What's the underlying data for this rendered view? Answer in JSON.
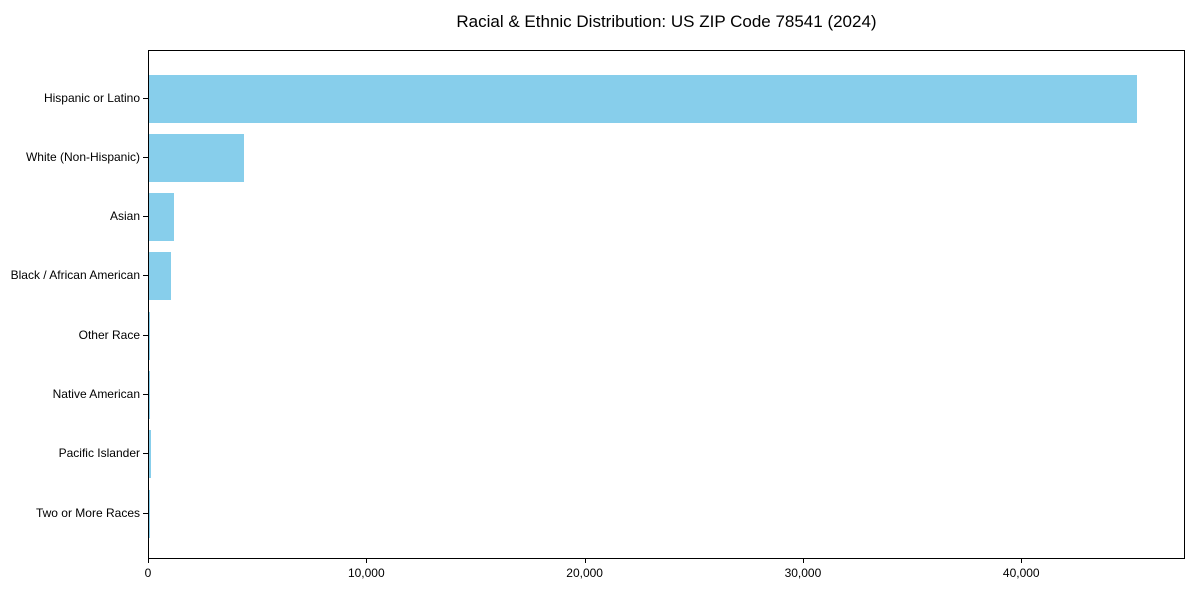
{
  "chart_data": {
    "type": "bar",
    "orientation": "horizontal",
    "title": "Racial & Ethnic Distribution: US ZIP Code 78541 (2024)",
    "categories": [
      "Hispanic or Latino",
      "White (Non-Hispanic)",
      "Asian",
      "Black / African American",
      "Other Race",
      "Native American",
      "Pacific Islander",
      "Two or More Races"
    ],
    "values": [
      45240,
      4350,
      1130,
      1020,
      35,
      25,
      80,
      60
    ],
    "xlabel": "",
    "ylabel": "",
    "xlim": [
      0,
      47500
    ],
    "x_ticks": [
      0,
      10000,
      20000,
      30000,
      40000
    ],
    "x_tick_labels": [
      "0",
      "10,000",
      "20,000",
      "30,000",
      "40,000"
    ],
    "bar_color": "#87CEEB",
    "background_color": "#ffffff",
    "text_color": "#000000",
    "grid": false,
    "legend": "none",
    "frame": "full-box"
  }
}
